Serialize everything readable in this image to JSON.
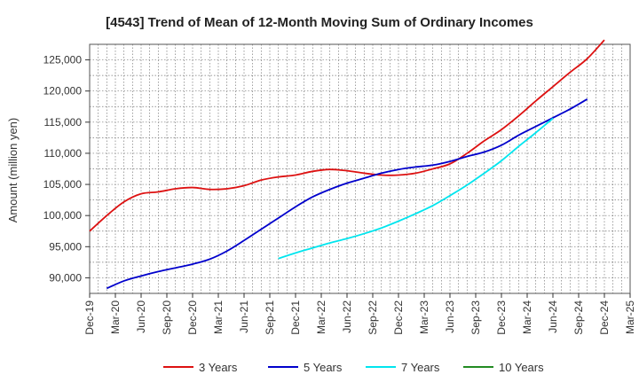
{
  "chart_data": {
    "type": "line",
    "title": "[4543]  Trend of Mean of 12-Month Moving Sum of Ordinary Incomes",
    "xlabel": "",
    "ylabel": "Amount (million yen)",
    "ylim": [
      87500,
      127500
    ],
    "yticks": [
      90000,
      95000,
      100000,
      105000,
      110000,
      115000,
      120000,
      125000
    ],
    "ytick_labels": [
      "90,000",
      "95,000",
      "100,000",
      "105,000",
      "110,000",
      "115,000",
      "120,000",
      "125,000"
    ],
    "x_tick_labels": [
      "Dec-19",
      "Mar-20",
      "Jun-20",
      "Sep-20",
      "Dec-20",
      "Mar-21",
      "Jun-21",
      "Sep-21",
      "Dec-21",
      "Mar-22",
      "Jun-22",
      "Sep-22",
      "Dec-22",
      "Mar-23",
      "Jun-23",
      "Sep-23",
      "Dec-23",
      "Mar-24",
      "Jun-24",
      "Sep-24",
      "Dec-24",
      "Mar-25"
    ],
    "grid": true,
    "legend_position": "bottom",
    "series": [
      {
        "name": "3 Years",
        "color": "#dd1111",
        "start_index": 0,
        "values": [
          97500,
          100000,
          102200,
          103500,
          103800,
          104300,
          104500,
          104200,
          104300,
          104800,
          105700,
          106200,
          106500,
          107100,
          107400,
          107200,
          106800,
          106500,
          106500,
          106800,
          107500,
          108300,
          110000,
          112000,
          113800,
          116000,
          118400,
          120700,
          123000,
          125200,
          128200
        ]
      },
      {
        "name": "5 Years",
        "color": "#0000cc",
        "start_index": 1,
        "values": [
          88300,
          89500,
          90300,
          91000,
          91600,
          92200,
          93000,
          94300,
          96000,
          97800,
          99600,
          101400,
          103000,
          104200,
          105200,
          106000,
          106800,
          107400,
          107800,
          108100,
          108700,
          109500,
          110200,
          111300,
          112900,
          114300,
          115700,
          117100,
          118700
        ]
      },
      {
        "name": "7 Years",
        "color": "#00e5ee",
        "start_index": 11,
        "values": [
          93100,
          94000,
          94800,
          95600,
          96300,
          97100,
          98000,
          99100,
          100300,
          101600,
          103200,
          104900,
          106800,
          108800,
          111100,
          113300,
          115600
        ]
      },
      {
        "name": "10 Years",
        "color": "#228b22",
        "start_index": 0,
        "values": []
      }
    ]
  }
}
